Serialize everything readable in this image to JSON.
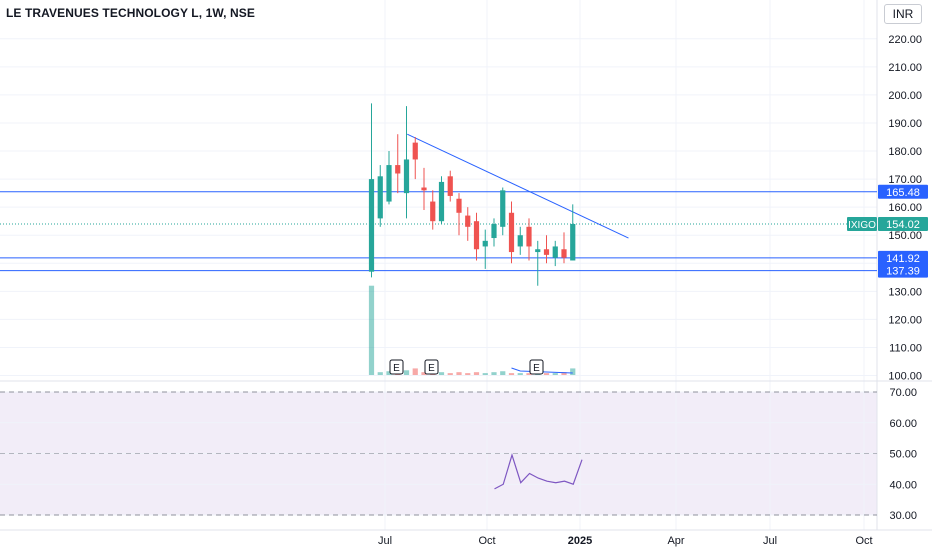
{
  "title": "LE TRAVENUES TECHNOLOGY L, 1W, NSE",
  "currency_label": "INR",
  "chart_data": [
    {
      "type": "candlestick",
      "title": "LE TRAVENUES TECHNOLOGY L, 1W, NSE",
      "ylim": [
        97,
        227
      ],
      "y_ticks": [
        "100.00",
        "110.00",
        "120.00",
        "130.00",
        "140.00",
        "150.00",
        "160.00",
        "170.00",
        "180.00",
        "190.00",
        "200.00",
        "210.00",
        "220.00"
      ],
      "x_ticks": [
        "Jul",
        "Oct",
        "2025",
        "Apr",
        "Jul",
        "Oct"
      ],
      "grid": true,
      "candles": [
        {
          "o": 137,
          "h": 197,
          "l": 135,
          "c": 170
        },
        {
          "o": 156,
          "h": 175,
          "l": 153,
          "c": 171
        },
        {
          "o": 162,
          "h": 180,
          "l": 161,
          "c": 175
        },
        {
          "o": 175,
          "h": 186,
          "l": 165,
          "c": 172
        },
        {
          "o": 165,
          "h": 196,
          "l": 156,
          "c": 177
        },
        {
          "o": 183,
          "h": 185,
          "l": 170,
          "c": 177
        },
        {
          "o": 167,
          "h": 174,
          "l": 159,
          "c": 166
        },
        {
          "o": 162,
          "h": 166,
          "l": 152,
          "c": 155
        },
        {
          "o": 155,
          "h": 171,
          "l": 154,
          "c": 169
        },
        {
          "o": 171,
          "h": 173,
          "l": 162,
          "c": 164
        },
        {
          "o": 163,
          "h": 165,
          "l": 150,
          "c": 158
        },
        {
          "o": 157,
          "h": 160,
          "l": 148,
          "c": 153
        },
        {
          "o": 155,
          "h": 158,
          "l": 141,
          "c": 145
        },
        {
          "o": 146,
          "h": 152,
          "l": 138,
          "c": 148
        },
        {
          "o": 149,
          "h": 156,
          "l": 146,
          "c": 154
        },
        {
          "o": 153,
          "h": 167,
          "l": 150,
          "c": 166
        },
        {
          "o": 158,
          "h": 162,
          "l": 140,
          "c": 144
        },
        {
          "o": 146,
          "h": 153,
          "l": 143,
          "c": 150
        },
        {
          "o": 153,
          "h": 156,
          "l": 141,
          "c": 146
        },
        {
          "o": 144,
          "h": 148,
          "l": 132,
          "c": 145
        },
        {
          "o": 145,
          "h": 150,
          "l": 140,
          "c": 143
        },
        {
          "o": 142,
          "h": 148,
          "l": 139,
          "c": 146
        },
        {
          "o": 145,
          "h": 151,
          "l": 140,
          "c": 142
        },
        {
          "o": 141,
          "h": 161,
          "l": 141,
          "c": 154
        }
      ],
      "volume": [
        0.95,
        0.03,
        0.04,
        0.03,
        0.05,
        0.07,
        0.03,
        0.02,
        0.03,
        0.02,
        0.03,
        0.02,
        0.03,
        0.02,
        0.03,
        0.04,
        0.02,
        0.02,
        0.02,
        0.02,
        0.02,
        0.02,
        0.03,
        0.07
      ],
      "horizontal_levels": [
        165.48,
        141.92,
        137.39
      ],
      "trendline": {
        "from": {
          "week": 5,
          "value": 186
        },
        "to": {
          "week": 28,
          "value": 149
        }
      },
      "last_price_line": 154.02,
      "price_labels": [
        {
          "text": "165.48",
          "value": 165.48,
          "color": "#2962ff"
        },
        {
          "text": "154.02",
          "value": 154.02,
          "color": "#26a69a",
          "tag": "IXIGO"
        },
        {
          "text": "141.92",
          "value": 141.92,
          "color": "#2962ff"
        },
        {
          "text": "137.39",
          "value": 137.39,
          "color": "#2962ff"
        }
      ],
      "earnings_markers": [
        {
          "label": "E",
          "week": 2
        },
        {
          "label": "E",
          "week": 6
        },
        {
          "label": "E",
          "week": 18
        }
      ],
      "colors": {
        "up": "#26a69a",
        "down": "#ef5350",
        "level": "#2962ff",
        "trend": "#2962ff",
        "rsi": "#7e57c2",
        "rsi_band": "#ede7f6"
      }
    },
    {
      "type": "line",
      "title": "",
      "ylim": [
        28,
        72
      ],
      "y_ticks": [
        "30.00",
        "40.00",
        "50.00",
        "60.00",
        "70.00"
      ],
      "band": [
        30,
        70
      ],
      "guide_levels": [
        30,
        50,
        70
      ],
      "series": [
        {
          "start_week": 14,
          "values": [
            38.5,
            40,
            49.5,
            40.5,
            43.5,
            42,
            41,
            40.5,
            41,
            40,
            48
          ]
        }
      ]
    }
  ]
}
